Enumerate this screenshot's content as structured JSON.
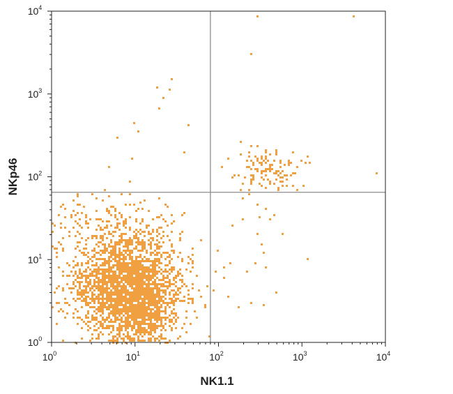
{
  "chart_data": {
    "type": "scatter",
    "title": "",
    "xlabel": "NK1.1",
    "ylabel": "NKp46",
    "xscale": "log",
    "yscale": "log",
    "xlim": [
      1,
      10000
    ],
    "ylim": [
      1,
      10000
    ],
    "x_ticks": [
      {
        "base": "10",
        "exp": "0"
      },
      {
        "base": "10",
        "exp": "1"
      },
      {
        "base": "10",
        "exp": "2"
      },
      {
        "base": "10",
        "exp": "3"
      },
      {
        "base": "10",
        "exp": "4"
      }
    ],
    "y_ticks": [
      {
        "base": "10",
        "exp": "0"
      },
      {
        "base": "10",
        "exp": "1"
      },
      {
        "base": "10",
        "exp": "2"
      },
      {
        "base": "10",
        "exp": "3"
      },
      {
        "base": "10",
        "exp": "4"
      }
    ],
    "quadrant_gates": {
      "x": 80,
      "y": 65
    },
    "point_color": "#f0a040",
    "gate_color": "#8c8c8c",
    "grid": false,
    "legend": "none",
    "clusters": [
      {
        "center": [
          10,
          4.5
        ],
        "spread_log": [
          0.28,
          0.3
        ],
        "count": 1900
      },
      {
        "center": [
          4,
          5
        ],
        "spread_log": [
          0.25,
          0.3
        ],
        "count": 500
      },
      {
        "center": [
          13,
          2
        ],
        "spread_log": [
          0.2,
          0.12
        ],
        "count": 250
      },
      {
        "center": [
          6,
          25
        ],
        "spread_log": [
          0.35,
          0.2
        ],
        "count": 180
      },
      {
        "center": [
          400,
          120
        ],
        "spread_log": [
          0.18,
          0.12
        ],
        "count": 120
      }
    ],
    "points": [
      [
        290,
        8500
      ],
      [
        4200,
        8500
      ],
      [
        250,
        3000
      ],
      [
        28,
        1500
      ],
      [
        18,
        1200
      ],
      [
        26,
        1100
      ],
      [
        22,
        900
      ],
      [
        20,
        650
      ],
      [
        10,
        450
      ],
      [
        11,
        350
      ],
      [
        45,
        430
      ],
      [
        6,
        300
      ],
      [
        38,
        200
      ],
      [
        9,
        170
      ],
      [
        5,
        130
      ],
      [
        800,
        200
      ],
      [
        700,
        160
      ],
      [
        7800,
        110
      ],
      [
        1200,
        10
      ],
      [
        2,
        60
      ],
      [
        150,
        25
      ],
      [
        200,
        30
      ],
      [
        300,
        20
      ],
      [
        330,
        15
      ],
      [
        350,
        12
      ],
      [
        380,
        8
      ],
      [
        500,
        4
      ],
      [
        350,
        2.8
      ],
      [
        250,
        3
      ],
      [
        170,
        2.7
      ],
      [
        130,
        3.5
      ],
      [
        120,
        6
      ],
      [
        100,
        13
      ],
      [
        90,
        7
      ],
      [
        140,
        9
      ],
      [
        220,
        7
      ],
      [
        280,
        9
      ],
      [
        380,
        40
      ],
      [
        420,
        30
      ],
      [
        460,
        35
      ],
      [
        600,
        20
      ],
      [
        300,
        45
      ],
      [
        200,
        55
      ],
      [
        230,
        60
      ],
      [
        150,
        100
      ],
      [
        110,
        130
      ],
      [
        300,
        170
      ],
      [
        240,
        240
      ],
      [
        180,
        260
      ],
      [
        260,
        140
      ]
    ]
  }
}
